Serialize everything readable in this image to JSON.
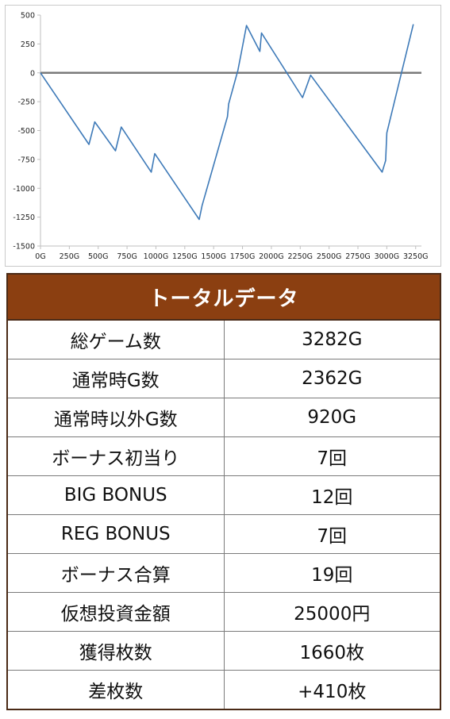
{
  "chart_data": {
    "type": "line",
    "xlabel": "",
    "ylabel": "",
    "xlim": [
      0,
      3300
    ],
    "ylim": [
      -1500,
      500
    ],
    "x_ticks": [
      "0G",
      "250G",
      "500G",
      "750G",
      "1000G",
      "1250G",
      "1500G",
      "1750G",
      "2000G",
      "2250G",
      "2500G",
      "2750G",
      "3000G",
      "3250G"
    ],
    "x_tick_values": [
      0,
      250,
      500,
      750,
      1000,
      1250,
      1500,
      1750,
      2000,
      2250,
      2500,
      2750,
      3000,
      3250
    ],
    "y_ticks": [
      "500",
      "250",
      "0",
      "-250",
      "-500",
      "-750",
      "-1000",
      "-1250",
      "-1500"
    ],
    "y_tick_values": [
      500,
      250,
      0,
      -250,
      -500,
      -750,
      -1000,
      -1250,
      -1500
    ],
    "grid": false,
    "zero_line": true,
    "colors": {
      "series": "#3e7ab8",
      "zero_line": "#7a7a7a",
      "axis": "#bfbfbf"
    },
    "series": [
      {
        "x": [
          0,
          420,
          470,
          650,
          700,
          960,
          975,
          990,
          1375,
          1400,
          1620,
          1630,
          1710,
          1735,
          1785,
          1900,
          1915,
          2270,
          2340,
          2960,
          2990,
          3000,
          3230
        ],
        "y": [
          0,
          -620,
          -425,
          -675,
          -470,
          -860,
          -780,
          -700,
          -1270,
          -1150,
          -380,
          -270,
          20,
          150,
          410,
          185,
          345,
          -215,
          -20,
          -860,
          -760,
          -520,
          420
        ]
      }
    ]
  },
  "table": {
    "title": "トータルデータ",
    "rows": [
      {
        "label": "総ゲーム数",
        "value": "3282G"
      },
      {
        "label": "通常時G数",
        "value": "2362G"
      },
      {
        "label": "通常時以外G数",
        "value": "920G"
      },
      {
        "label": "ボーナス初当り",
        "value": "7回"
      },
      {
        "label": "BIG BONUS",
        "value": "12回"
      },
      {
        "label": "REG BONUS",
        "value": "7回"
      },
      {
        "label": "ボーナス合算",
        "value": "19回"
      },
      {
        "label": "仮想投資金額",
        "value": "25000円"
      },
      {
        "label": "獲得枚数",
        "value": "1660枚"
      },
      {
        "label": "差枚数",
        "value": "+410枚"
      }
    ]
  }
}
